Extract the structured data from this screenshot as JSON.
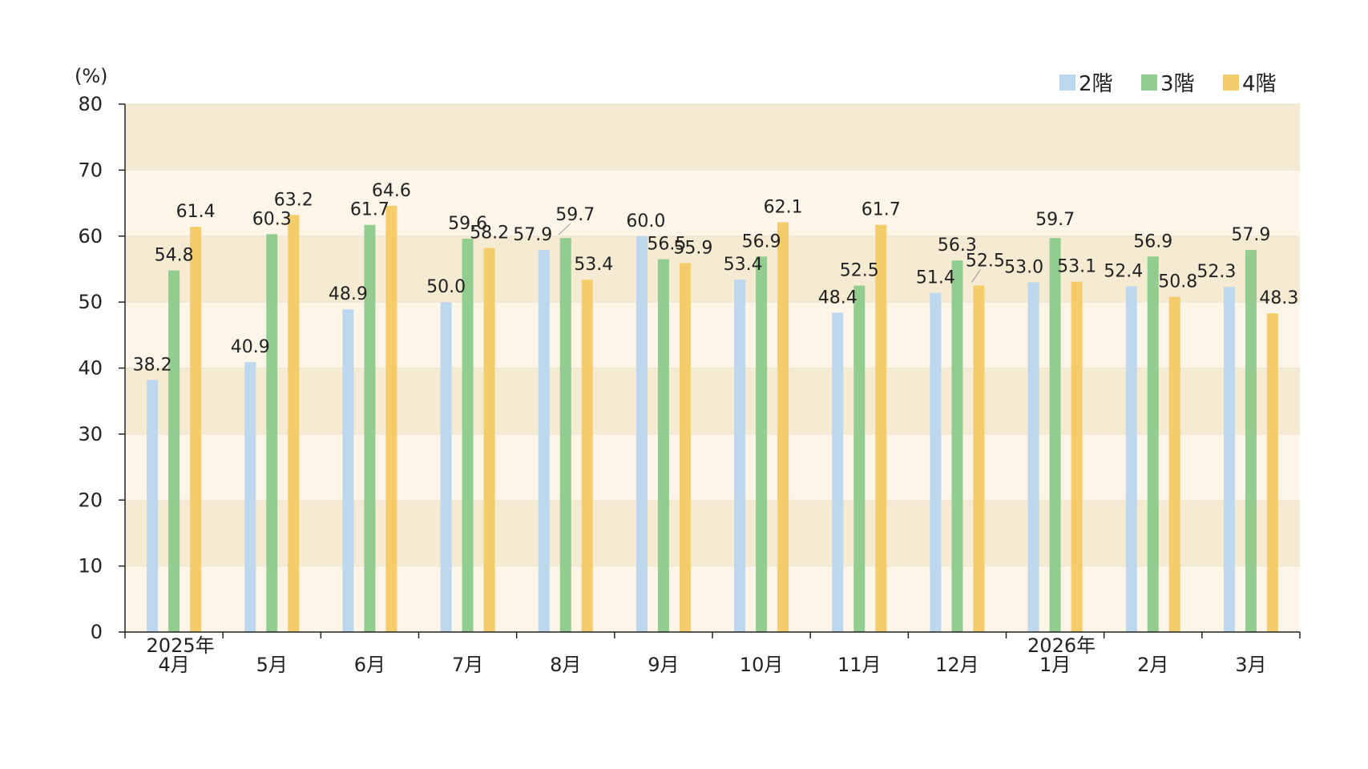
{
  "chart_data": {
    "type": "bar",
    "y_unit": "(%)",
    "ylim": [
      0,
      80
    ],
    "yticks": [
      0,
      10,
      20,
      30,
      40,
      50,
      60,
      70,
      80
    ],
    "categories": [
      "4月",
      "5月",
      "6月",
      "7月",
      "8月",
      "9月",
      "10月",
      "11月",
      "12月",
      "1月",
      "2月",
      "3月"
    ],
    "year_labels": [
      "2025年",
      "",
      "",
      "",
      "",
      "",
      "",
      "",
      "",
      "2026年",
      "",
      ""
    ],
    "legend_position": "top-right",
    "band_colors": [
      "#fdf6e8",
      "#f5ebd3"
    ],
    "series": [
      {
        "name": "2階",
        "color": "#bdd7ee",
        "values": [
          38.2,
          40.9,
          48.9,
          50.0,
          57.9,
          60.0,
          53.4,
          48.4,
          51.4,
          53.0,
          52.4,
          52.3
        ]
      },
      {
        "name": "3階",
        "color": "#92cc8f",
        "values": [
          54.8,
          60.3,
          61.7,
          59.6,
          59.7,
          56.5,
          56.9,
          52.5,
          56.3,
          59.7,
          56.9,
          57.9
        ]
      },
      {
        "name": "4階",
        "color": "#f4cd6a",
        "values": [
          61.4,
          63.2,
          64.6,
          58.2,
          53.4,
          55.9,
          62.1,
          61.7,
          52.5,
          53.1,
          50.8,
          48.3
        ]
      }
    ],
    "data_labels": [
      [
        "38.2",
        "40.9",
        "48.9",
        "50.0",
        "57.9",
        "60.0",
        "53.4",
        "48.4",
        "51.4",
        "53.0",
        "52.4",
        "52.3"
      ],
      [
        "54.8",
        "60.3",
        "61.7",
        "59.6",
        "59.7",
        "56.5",
        "56.9",
        "52.5",
        "56.3",
        "59.7",
        "56.9",
        "57.9"
      ],
      [
        "61.4",
        "63.2",
        "64.6",
        "58.2",
        "53.4",
        "55.9",
        "62.1",
        "61.7",
        "52.5",
        "53.1",
        "50.8",
        "48.3"
      ]
    ]
  }
}
